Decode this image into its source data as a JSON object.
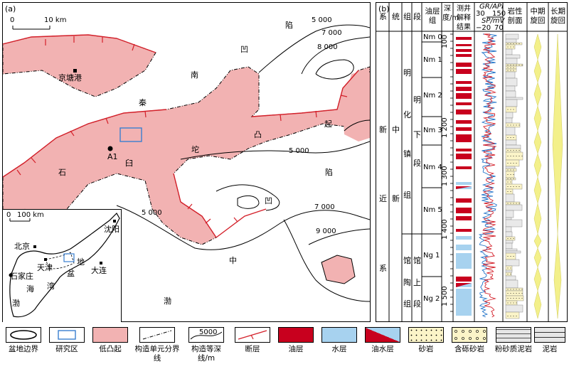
{
  "map": {
    "panel_label": "(a)",
    "scale": {
      "zero": "0",
      "length": "10 km"
    },
    "places": {
      "jingtang": "京塘港",
      "a1": "A1"
    },
    "region_chars": {
      "xian": "陷",
      "ao_top": "凹",
      "nan": "南",
      "qin": "秦",
      "qi": "起",
      "tu": "凸",
      "bai": "臼",
      "tuo": "坨",
      "shi": "石",
      "xian2": "陷",
      "ao2": "凹",
      "zhong": "中",
      "bo": "渤"
    },
    "contours": {
      "c1": "5 000",
      "c2": "7 000",
      "c3": "8 000",
      "c4": "5 000",
      "c5": "7 000",
      "c6": "9 000",
      "c7": "5 000"
    },
    "inset": {
      "scale": {
        "zero": "0",
        "length": "100 km"
      },
      "cities": [
        "北京",
        "天津",
        "石家庄",
        "沈阳",
        "大连"
      ],
      "sea_chars": [
        "海",
        "湾",
        "渤"
      ],
      "basin_chars": [
        "地",
        "盆"
      ]
    }
  },
  "column": {
    "panel_label": "(b)",
    "headers": {
      "system": "系",
      "series": "统",
      "group": "组",
      "section": "段",
      "oil_group": "油层组",
      "depth": "深度/m",
      "interp": "测井解释结果",
      "gr": "GR/API",
      "gr_ticks": [
        "30",
        "150"
      ],
      "sp": "SP/mV",
      "sp_ticks": [
        "−20",
        "70"
      ],
      "litho": "岩性剖面",
      "mid_cycle": "中期旋回",
      "long_cycle": "长期旋回"
    },
    "system_chars": [
      "新",
      "近",
      "系"
    ],
    "series_chars": [
      "中",
      "新"
    ],
    "groups": [
      {
        "chars": [
          "明",
          "化",
          "镇",
          "组"
        ]
      },
      {
        "chars": [
          "馆",
          "陶",
          "组"
        ]
      }
    ],
    "sections": [
      {
        "chars": [
          "明",
          "下",
          "段"
        ]
      },
      {
        "chars": [
          "馆",
          "上",
          "段"
        ]
      }
    ],
    "oil_groups": [
      "Nm 0",
      "Nm 1",
      "Nm 2",
      "Nm 3",
      "Nm 4",
      "Nm 5",
      "Ng 1",
      "Ng 2"
    ],
    "depth_ticks": [
      "100",
      "1 200",
      "1 300",
      "1 400",
      "1 500"
    ]
  },
  "legend": [
    {
      "label": "盆地边界",
      "symbol": "basin-boundary"
    },
    {
      "label": "研究区",
      "symbol": "study-area"
    },
    {
      "label": "低凸起",
      "symbol": "low-uplift"
    },
    {
      "label": "构造单元分界线",
      "symbol": "unit-boundary"
    },
    {
      "label": "构造等深线/m",
      "symbol": "contour",
      "sample": "5000"
    },
    {
      "label": "断层",
      "symbol": "fault"
    },
    {
      "label": "油层",
      "symbol": "oil-layer"
    },
    {
      "label": "水层",
      "symbol": "water-layer"
    },
    {
      "label": "油水层",
      "symbol": "oil-water-layer"
    },
    {
      "label": "砂岩",
      "symbol": "sandstone"
    },
    {
      "label": "含砾砂岩",
      "symbol": "pebbly-sandstone"
    },
    {
      "label": "粉砂质泥岩",
      "symbol": "silty-mudstone"
    },
    {
      "label": "泥岩",
      "symbol": "mudstone"
    }
  ],
  "colors": {
    "uplift": "#f2b2b2",
    "fault": "#d4202a",
    "oil": "#c8001e",
    "water": "#a7d2ef",
    "sand": "#fbf4c8",
    "study": "#3a7fd0",
    "curve_gr": "#1f72c8",
    "curve_sp": "#d4202a"
  }
}
